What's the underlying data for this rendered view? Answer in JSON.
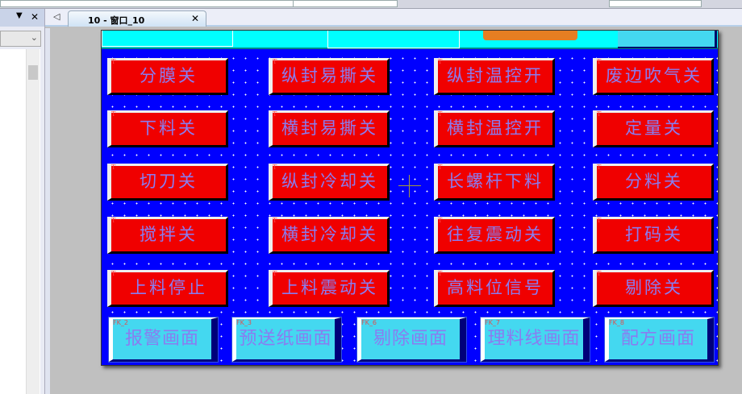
{
  "tab": {
    "title": "10 - 窗口_10",
    "close_icon": "close-icon",
    "back_icon": "left-triangle-icon"
  },
  "left_panel": {
    "menu_icon": "dropdown-triangle-icon",
    "close": "✕",
    "combo_arrow": "⌄"
  },
  "buttons": [
    [
      "分膜关",
      "纵封易撕关",
      "纵封温控开",
      "废边吹气关"
    ],
    [
      "下料关",
      "横封易撕关",
      "横封温控开",
      "定量关"
    ],
    [
      "切刀关",
      "纵封冷却关",
      "长螺杆下料",
      "分料关"
    ],
    [
      "搅拌关",
      "横封冷却关",
      "往复震动关",
      "打码关"
    ],
    [
      "上料停止",
      "上料震动关",
      "高料位信号",
      "剔除关"
    ]
  ],
  "nav": [
    {
      "code": "FK_2",
      "label": "报警画面"
    },
    {
      "code": "FK_3",
      "label": "预送纸画面"
    },
    {
      "code": "FK_6",
      "label": "剔除画面"
    },
    {
      "code": "FK_7",
      "label": "理料线画面"
    },
    {
      "code": "FK_8",
      "label": "配方画面"
    }
  ],
  "colors": {
    "canvas": "#0000ff",
    "button": "#f00000",
    "nav": "#44d8f0",
    "header": "#00ffff",
    "text": "#8a7cf0"
  }
}
